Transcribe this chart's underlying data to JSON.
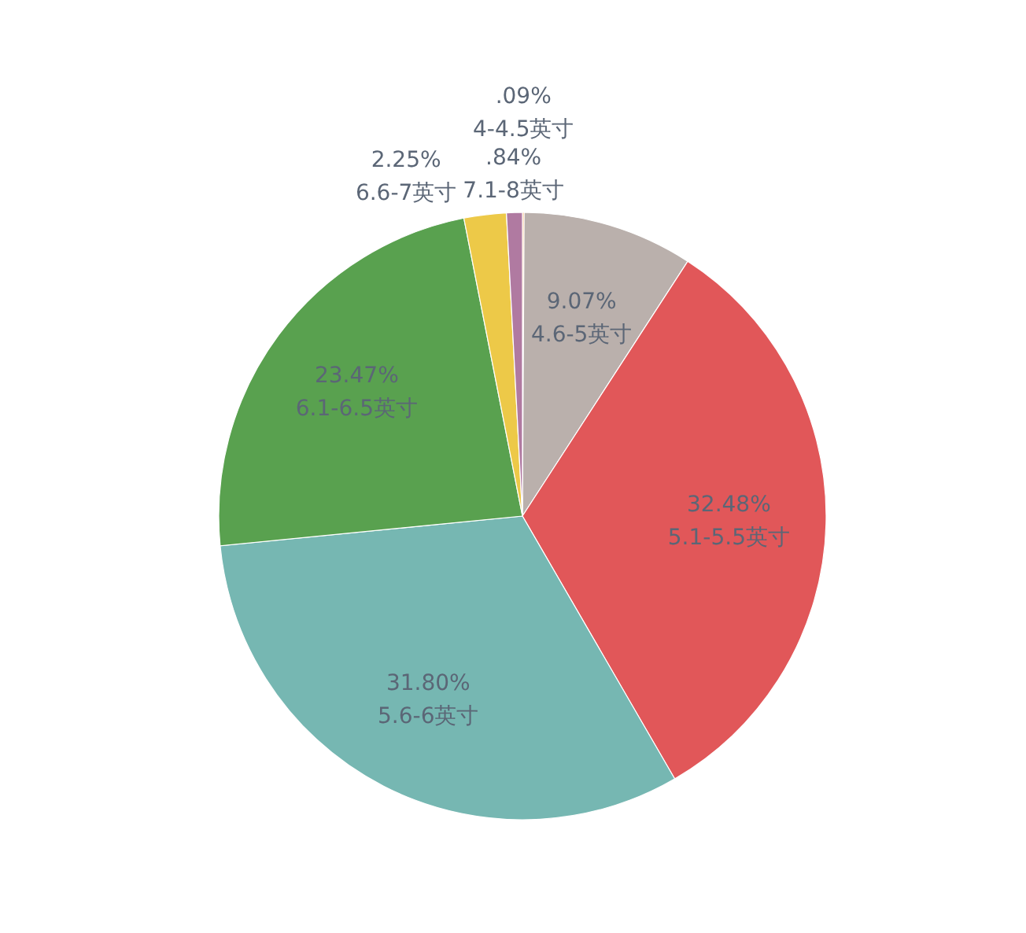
{
  "chart_data": {
    "type": "pie",
    "categories": [
      "4-4.5英寸",
      "4.6-5英寸",
      "5.1-5.5英寸",
      "5.6-6英寸",
      "6.1-6.5英寸",
      "6.6-7英寸",
      "7.1-8英寸"
    ],
    "values": [
      0.09,
      9.07,
      32.48,
      31.8,
      23.47,
      2.25,
      0.84
    ],
    "colors": [
      "#f28e2b",
      "#bab0ac",
      "#e15759",
      "#76b7b2",
      "#59a14f",
      "#edc948",
      "#b07aa1"
    ],
    "value_labels": [
      ".09%",
      "9.07%",
      "32.48%",
      "31.80%",
      "23.47%",
      "2.25%",
      ".84%"
    ]
  }
}
